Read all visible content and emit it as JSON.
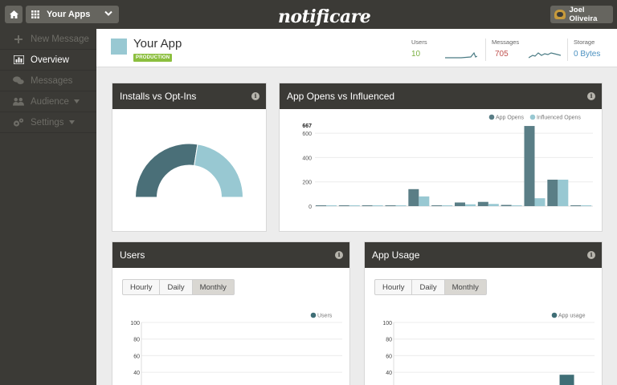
{
  "topbar": {
    "app_select_label": "Your Apps",
    "logo_text": "notificare",
    "user_name": "Joel Oliveira"
  },
  "sidebar": {
    "items": [
      {
        "label": "New Message",
        "icon": "plus-icon",
        "active": false
      },
      {
        "label": "Overview",
        "icon": "bar-chart-icon",
        "active": true
      },
      {
        "label": "Messages",
        "icon": "chat-bubbles-icon",
        "active": false
      },
      {
        "label": "Audience",
        "icon": "people-icon",
        "active": false,
        "has_caret": true
      },
      {
        "label": "Settings",
        "icon": "gears-icon",
        "active": false,
        "has_caret": true
      }
    ]
  },
  "header": {
    "app_name": "Your App",
    "environment": "PRODUCTION",
    "stats": {
      "users": {
        "label": "Users",
        "value": "10",
        "color": "#7ab040"
      },
      "messages": {
        "label": "Messages",
        "value": "705",
        "color": "#c0504d"
      },
      "storage": {
        "label": "Storage",
        "value": "0 Bytes",
        "color": "#4a90c0"
      }
    }
  },
  "colors": {
    "dark": "#3b3a36",
    "series_primary": "#5a7e86",
    "series_secondary": "#98c8d2"
  },
  "panels": {
    "installs": {
      "title": "Installs vs Opt-Ins"
    },
    "opens": {
      "title": "App Opens vs Influenced"
    },
    "users": {
      "title": "Users",
      "tabs": [
        "Hourly",
        "Daily",
        "Monthly"
      ],
      "selected_tab": "Monthly"
    },
    "usage": {
      "title": "App Usage",
      "tabs": [
        "Hourly",
        "Daily",
        "Monthly"
      ],
      "selected_tab": "Monthly"
    }
  },
  "chart_data": [
    {
      "type": "pie",
      "variant": "half-donut",
      "slices": [
        {
          "value": 55,
          "color": "#4a6f78"
        },
        {
          "value": 45,
          "color": "#98c8d2"
        }
      ]
    },
    {
      "type": "bar",
      "ymax_label": "667",
      "yticks": [
        0,
        200,
        400,
        600
      ],
      "ylim": [
        0,
        667
      ],
      "legend_position": "top-right",
      "series": [
        {
          "name": "App Opens",
          "color": "#5a7e86",
          "values": [
            0,
            0,
            0,
            0,
            140,
            0,
            30,
            35,
            10,
            660,
            218,
            0
          ]
        },
        {
          "name": "Influenced Opens",
          "color": "#98c8d2",
          "values": [
            0,
            0,
            0,
            0,
            80,
            0,
            15,
            18,
            5,
            65,
            218,
            0
          ]
        }
      ]
    },
    {
      "type": "bar",
      "yticks": [
        40,
        60,
        80,
        100
      ],
      "ylim": [
        0,
        100
      ],
      "legend_position": "top-right",
      "series": [
        {
          "name": "Users",
          "color": "#3f6e76",
          "values": []
        }
      ]
    },
    {
      "type": "bar",
      "yticks": [
        40,
        60,
        80,
        100
      ],
      "ylim": [
        0,
        100
      ],
      "legend_position": "top-right",
      "series": [
        {
          "name": "App usage",
          "color": "#3f6e76",
          "values": [
            0,
            0,
            0,
            0,
            0,
            0,
            0,
            0,
            0,
            37,
            0
          ]
        }
      ]
    }
  ]
}
